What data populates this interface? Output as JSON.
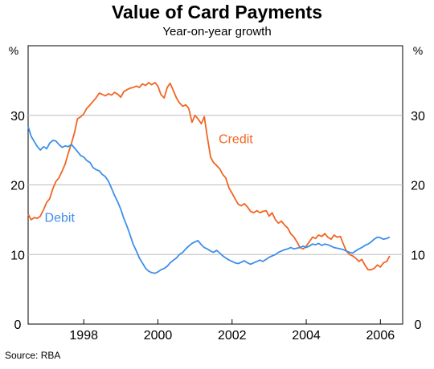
{
  "chart_data": {
    "type": "line",
    "title": "Value of Card Payments",
    "subtitle": "Year-on-year growth",
    "ylabel_left": "%",
    "ylabel_right": "%",
    "ylim": [
      0,
      40
    ],
    "yticks": [
      0,
      10,
      20,
      30
    ],
    "xlim": [
      1996.5,
      2006.6
    ],
    "xticks": [
      1998,
      2000,
      2002,
      2004,
      2006
    ],
    "grid": true,
    "source": "Source: RBA",
    "colors": {
      "credit": "#f26522",
      "debit": "#3d8fe8",
      "grid": "#bdbdbd"
    },
    "series": [
      {
        "name": "Credit",
        "label_position": [
          2002.1,
          26
        ],
        "points": [
          [
            1996.5,
            15.8
          ],
          [
            1996.58,
            15.0
          ],
          [
            1996.67,
            15.3
          ],
          [
            1996.75,
            15.2
          ],
          [
            1996.83,
            15.5
          ],
          [
            1996.92,
            16.5
          ],
          [
            1997.0,
            17.5
          ],
          [
            1997.08,
            18.0
          ],
          [
            1997.17,
            19.5
          ],
          [
            1997.25,
            20.5
          ],
          [
            1997.33,
            21.0
          ],
          [
            1997.42,
            22.0
          ],
          [
            1997.5,
            23.0
          ],
          [
            1997.58,
            24.5
          ],
          [
            1997.67,
            26.0
          ],
          [
            1997.75,
            27.5
          ],
          [
            1997.83,
            29.5
          ],
          [
            1997.92,
            29.8
          ],
          [
            1998.0,
            30.2
          ],
          [
            1998.08,
            31.0
          ],
          [
            1998.17,
            31.5
          ],
          [
            1998.25,
            32.0
          ],
          [
            1998.33,
            32.5
          ],
          [
            1998.42,
            33.2
          ],
          [
            1998.5,
            33.0
          ],
          [
            1998.58,
            32.8
          ],
          [
            1998.67,
            33.1
          ],
          [
            1998.75,
            32.9
          ],
          [
            1998.83,
            33.3
          ],
          [
            1998.92,
            33.0
          ],
          [
            1999.0,
            32.6
          ],
          [
            1999.08,
            33.4
          ],
          [
            1999.17,
            33.7
          ],
          [
            1999.25,
            33.9
          ],
          [
            1999.33,
            34.0
          ],
          [
            1999.42,
            34.2
          ],
          [
            1999.5,
            34.0
          ],
          [
            1999.58,
            34.5
          ],
          [
            1999.67,
            34.3
          ],
          [
            1999.75,
            34.7
          ],
          [
            1999.83,
            34.4
          ],
          [
            1999.92,
            34.7
          ],
          [
            2000.0,
            34.2
          ],
          [
            2000.08,
            33.0
          ],
          [
            2000.17,
            32.5
          ],
          [
            2000.25,
            34.0
          ],
          [
            2000.33,
            34.6
          ],
          [
            2000.42,
            33.5
          ],
          [
            2000.5,
            32.5
          ],
          [
            2000.58,
            31.8
          ],
          [
            2000.67,
            31.3
          ],
          [
            2000.75,
            31.5
          ],
          [
            2000.83,
            31.0
          ],
          [
            2000.92,
            29.0
          ],
          [
            2001.0,
            30.0
          ],
          [
            2001.08,
            29.5
          ],
          [
            2001.17,
            28.8
          ],
          [
            2001.25,
            29.8
          ],
          [
            2001.33,
            27.0
          ],
          [
            2001.42,
            24.0
          ],
          [
            2001.5,
            23.2
          ],
          [
            2001.58,
            22.8
          ],
          [
            2001.67,
            22.3
          ],
          [
            2001.75,
            21.5
          ],
          [
            2001.83,
            21.0
          ],
          [
            2001.92,
            19.5
          ],
          [
            2002.0,
            18.8
          ],
          [
            2002.08,
            18.0
          ],
          [
            2002.17,
            17.2
          ],
          [
            2002.25,
            17.0
          ],
          [
            2002.33,
            17.3
          ],
          [
            2002.42,
            16.8
          ],
          [
            2002.5,
            16.2
          ],
          [
            2002.58,
            16.0
          ],
          [
            2002.67,
            16.3
          ],
          [
            2002.75,
            16.0
          ],
          [
            2002.83,
            16.2
          ],
          [
            2002.92,
            16.3
          ],
          [
            2003.0,
            15.5
          ],
          [
            2003.08,
            16.0
          ],
          [
            2003.17,
            15.0
          ],
          [
            2003.25,
            14.5
          ],
          [
            2003.33,
            14.8
          ],
          [
            2003.42,
            14.2
          ],
          [
            2003.5,
            13.8
          ],
          [
            2003.58,
            13.0
          ],
          [
            2003.67,
            12.5
          ],
          [
            2003.75,
            11.8
          ],
          [
            2003.83,
            11.0
          ],
          [
            2003.92,
            10.8
          ],
          [
            2004.0,
            11.2
          ],
          [
            2004.08,
            11.8
          ],
          [
            2004.17,
            12.5
          ],
          [
            2004.25,
            12.3
          ],
          [
            2004.33,
            12.8
          ],
          [
            2004.42,
            12.6
          ],
          [
            2004.5,
            13.0
          ],
          [
            2004.58,
            12.5
          ],
          [
            2004.67,
            12.2
          ],
          [
            2004.75,
            12.8
          ],
          [
            2004.83,
            12.5
          ],
          [
            2004.92,
            12.6
          ],
          [
            2005.0,
            11.5
          ],
          [
            2005.08,
            10.5
          ],
          [
            2005.17,
            10.0
          ],
          [
            2005.25,
            9.8
          ],
          [
            2005.33,
            9.5
          ],
          [
            2005.42,
            9.0
          ],
          [
            2005.5,
            9.3
          ],
          [
            2005.58,
            8.5
          ],
          [
            2005.67,
            7.8
          ],
          [
            2005.75,
            7.8
          ],
          [
            2005.83,
            8.0
          ],
          [
            2005.92,
            8.5
          ],
          [
            2006.0,
            8.2
          ],
          [
            2006.08,
            8.8
          ],
          [
            2006.17,
            9.0
          ],
          [
            2006.25,
            9.8
          ]
        ]
      },
      {
        "name": "Debit",
        "label_position": [
          1997.35,
          14.7
        ],
        "points": [
          [
            1996.5,
            28.4
          ],
          [
            1996.58,
            27.0
          ],
          [
            1996.67,
            26.2
          ],
          [
            1996.75,
            25.5
          ],
          [
            1996.83,
            25.0
          ],
          [
            1996.92,
            25.5
          ],
          [
            1997.0,
            25.2
          ],
          [
            1997.08,
            26.0
          ],
          [
            1997.17,
            26.4
          ],
          [
            1997.25,
            26.3
          ],
          [
            1997.33,
            25.8
          ],
          [
            1997.42,
            25.4
          ],
          [
            1997.5,
            25.6
          ],
          [
            1997.58,
            25.5
          ],
          [
            1997.67,
            25.8
          ],
          [
            1997.75,
            25.3
          ],
          [
            1997.83,
            24.8
          ],
          [
            1997.92,
            24.2
          ],
          [
            1998.0,
            24.0
          ],
          [
            1998.08,
            23.5
          ],
          [
            1998.17,
            23.2
          ],
          [
            1998.25,
            22.5
          ],
          [
            1998.33,
            22.2
          ],
          [
            1998.42,
            22.0
          ],
          [
            1998.5,
            21.5
          ],
          [
            1998.58,
            21.2
          ],
          [
            1998.67,
            20.5
          ],
          [
            1998.75,
            19.5
          ],
          [
            1998.83,
            18.5
          ],
          [
            1998.92,
            17.5
          ],
          [
            1999.0,
            16.5
          ],
          [
            1999.08,
            15.2
          ],
          [
            1999.17,
            14.0
          ],
          [
            1999.25,
            12.8
          ],
          [
            1999.33,
            11.5
          ],
          [
            1999.42,
            10.5
          ],
          [
            1999.5,
            9.5
          ],
          [
            1999.58,
            8.8
          ],
          [
            1999.67,
            8.0
          ],
          [
            1999.75,
            7.6
          ],
          [
            1999.83,
            7.4
          ],
          [
            1999.92,
            7.3
          ],
          [
            2000.0,
            7.5
          ],
          [
            2000.08,
            7.8
          ],
          [
            2000.17,
            8.0
          ],
          [
            2000.25,
            8.3
          ],
          [
            2000.33,
            8.8
          ],
          [
            2000.42,
            9.2
          ],
          [
            2000.5,
            9.5
          ],
          [
            2000.58,
            10.0
          ],
          [
            2000.67,
            10.3
          ],
          [
            2000.75,
            10.8
          ],
          [
            2000.83,
            11.2
          ],
          [
            2000.92,
            11.6
          ],
          [
            2001.0,
            11.8
          ],
          [
            2001.08,
            12.0
          ],
          [
            2001.17,
            11.4
          ],
          [
            2001.25,
            11.0
          ],
          [
            2001.33,
            10.8
          ],
          [
            2001.42,
            10.5
          ],
          [
            2001.5,
            10.3
          ],
          [
            2001.58,
            10.6
          ],
          [
            2001.67,
            10.2
          ],
          [
            2001.75,
            9.8
          ],
          [
            2001.83,
            9.5
          ],
          [
            2001.92,
            9.2
          ],
          [
            2002.0,
            9.0
          ],
          [
            2002.08,
            8.8
          ],
          [
            2002.17,
            8.7
          ],
          [
            2002.25,
            8.9
          ],
          [
            2002.33,
            9.1
          ],
          [
            2002.42,
            8.8
          ],
          [
            2002.5,
            8.6
          ],
          [
            2002.58,
            8.8
          ],
          [
            2002.67,
            9.0
          ],
          [
            2002.75,
            9.2
          ],
          [
            2002.83,
            9.0
          ],
          [
            2002.92,
            9.3
          ],
          [
            2003.0,
            9.6
          ],
          [
            2003.08,
            9.8
          ],
          [
            2003.17,
            10.0
          ],
          [
            2003.25,
            10.3
          ],
          [
            2003.33,
            10.5
          ],
          [
            2003.42,
            10.7
          ],
          [
            2003.5,
            10.8
          ],
          [
            2003.58,
            11.0
          ],
          [
            2003.67,
            10.8
          ],
          [
            2003.75,
            10.9
          ],
          [
            2003.83,
            11.0
          ],
          [
            2003.92,
            11.2
          ],
          [
            2004.0,
            11.0
          ],
          [
            2004.08,
            11.2
          ],
          [
            2004.17,
            11.5
          ],
          [
            2004.25,
            11.4
          ],
          [
            2004.33,
            11.6
          ],
          [
            2004.42,
            11.3
          ],
          [
            2004.5,
            11.5
          ],
          [
            2004.58,
            11.4
          ],
          [
            2004.67,
            11.2
          ],
          [
            2004.75,
            11.0
          ],
          [
            2004.83,
            10.9
          ],
          [
            2004.92,
            10.8
          ],
          [
            2005.0,
            10.7
          ],
          [
            2005.08,
            10.5
          ],
          [
            2005.17,
            10.3
          ],
          [
            2005.25,
            10.2
          ],
          [
            2005.33,
            10.5
          ],
          [
            2005.42,
            10.8
          ],
          [
            2005.5,
            11.0
          ],
          [
            2005.58,
            11.3
          ],
          [
            2005.67,
            11.5
          ],
          [
            2005.75,
            11.8
          ],
          [
            2005.83,
            12.2
          ],
          [
            2005.92,
            12.5
          ],
          [
            2006.0,
            12.4
          ],
          [
            2006.08,
            12.2
          ],
          [
            2006.17,
            12.3
          ],
          [
            2006.25,
            12.5
          ]
        ]
      }
    ]
  }
}
